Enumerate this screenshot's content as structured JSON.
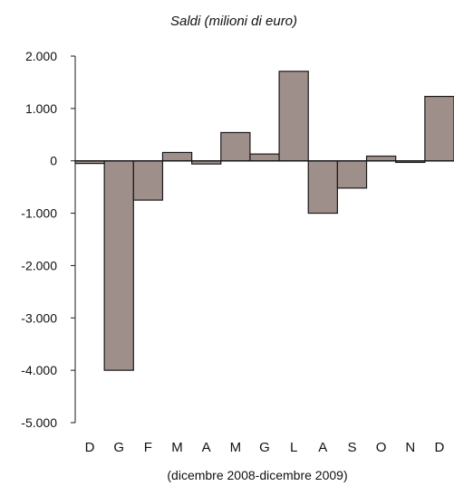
{
  "chart_data": {
    "type": "bar",
    "title": "Saldi (milioni di euro)",
    "xlabel": "(dicembre 2008-dicembre 2009)",
    "ylabel": "",
    "categories": [
      "D",
      "G",
      "F",
      "M",
      "A",
      "M",
      "G",
      "L",
      "A",
      "S",
      "O",
      "N",
      "D"
    ],
    "values": [
      -50,
      -4000,
      -750,
      160,
      -60,
      540,
      130,
      1710,
      -1000,
      -520,
      90,
      -30,
      1230
    ],
    "ylim": [
      -5000,
      2000
    ],
    "yticks": [
      2000,
      1000,
      0,
      -1000,
      -2000,
      -3000,
      -4000,
      -5000
    ],
    "ytick_labels": [
      "2.000",
      "1.000",
      "0",
      "-1.000",
      "-2.000",
      "-3.000",
      "-4.000",
      "-5.000"
    ],
    "grid": false,
    "bar_color": "#9e8f8b",
    "bar_edge_color": "#1a1a1a"
  }
}
